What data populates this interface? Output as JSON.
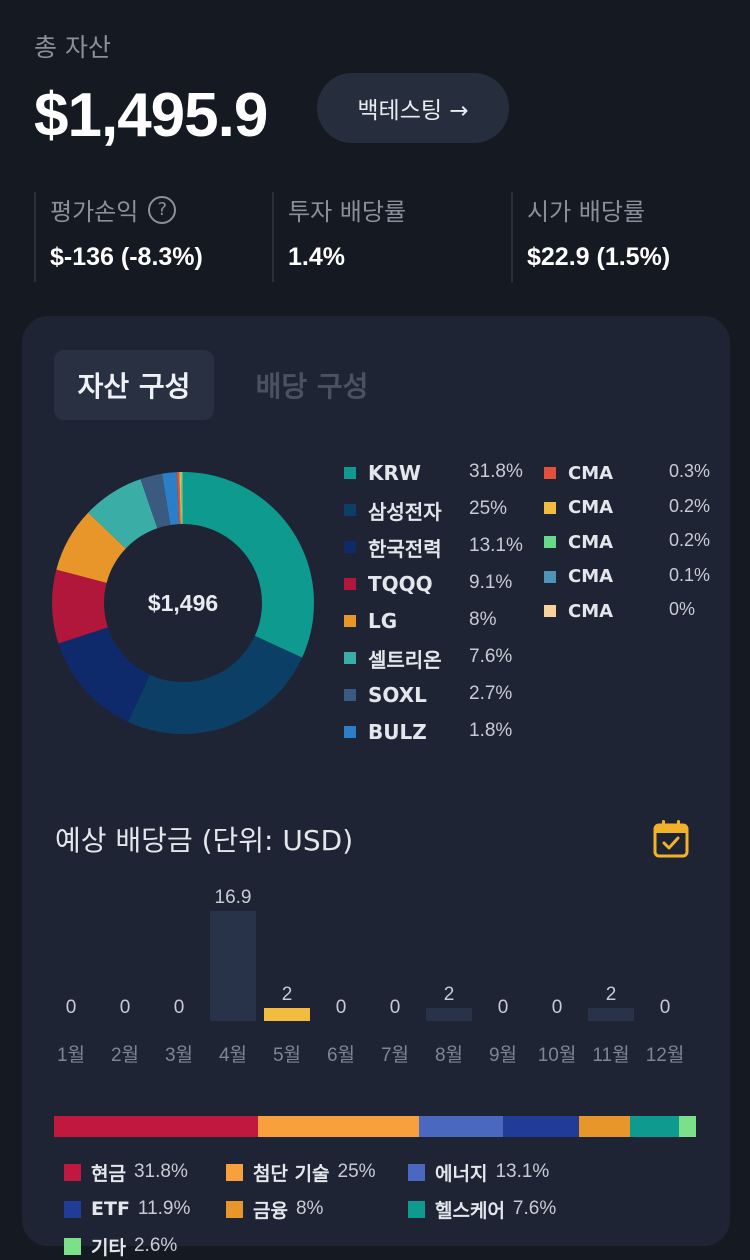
{
  "header": {
    "total_label": "총 자산",
    "total_value": "$1,495.9",
    "backtest_label": "백테스팅 →"
  },
  "stats": [
    {
      "label": "평가손익",
      "value": "$-136 (-8.3%)",
      "help_icon": "question-circle-icon"
    },
    {
      "label": "투자 배당률",
      "value": "1.4%"
    },
    {
      "label": "시가 배당률",
      "value": "$22.9 (1.5%)"
    }
  ],
  "tabs": [
    {
      "label": "자산 구성",
      "active": true
    },
    {
      "label": "배당 구성",
      "active": false
    }
  ],
  "donut": {
    "center_label": "$1,496",
    "segments": [
      {
        "name": "KRW",
        "pct": "31.8%",
        "value": 31.8,
        "color": "#0e9a8e"
      },
      {
        "name": "삼성전자",
        "pct": "25%",
        "value": 25,
        "color": "#0b3f66"
      },
      {
        "name": "한국전력",
        "pct": "13.1%",
        "value": 13.1,
        "color": "#0f2a6a"
      },
      {
        "name": "TQQQ",
        "pct": "9.1%",
        "value": 9.1,
        "color": "#b0173a"
      },
      {
        "name": "LG",
        "pct": "8%",
        "value": 8,
        "color": "#e8962a"
      },
      {
        "name": "셀트리온",
        "pct": "7.6%",
        "value": 7.6,
        "color": "#3aaea6"
      },
      {
        "name": "SOXL",
        "pct": "2.7%",
        "value": 2.7,
        "color": "#3a5a80"
      },
      {
        "name": "BULZ",
        "pct": "1.8%",
        "value": 1.8,
        "color": "#2a7fc8"
      },
      {
        "name": "CMA",
        "pct": "0.3%",
        "value": 0.3,
        "color": "#e0503a"
      },
      {
        "name": "CMA",
        "pct": "0.2%",
        "value": 0.2,
        "color": "#f2bd3e"
      },
      {
        "name": "CMA",
        "pct": "0.2%",
        "value": 0.2,
        "color": "#66d98a"
      },
      {
        "name": "CMA",
        "pct": "0.1%",
        "value": 0.1,
        "color": "#4e93b8"
      },
      {
        "name": "CMA",
        "pct": "0%",
        "value": 0,
        "color": "#f7d29a"
      }
    ]
  },
  "dividend": {
    "title": "예상 배당금 (단위: USD)",
    "calendar_icon": "calendar-check-icon"
  },
  "chart_data": {
    "type": "bar",
    "categories": [
      "1월",
      "2월",
      "3월",
      "4월",
      "5월",
      "6월",
      "7월",
      "8월",
      "9월",
      "10월",
      "11월",
      "12월"
    ],
    "values": [
      0,
      0,
      0,
      16.9,
      2,
      0,
      0,
      2,
      0,
      0,
      2,
      0
    ],
    "value_labels": [
      "0",
      "0",
      "0",
      "16.9",
      "2",
      "0",
      "0",
      "2",
      "0",
      "0",
      "2",
      "0"
    ],
    "highlight_index": 4,
    "bar_color": "#28334a",
    "highlight_color": "#f2bd3e",
    "ylim": [
      0,
      16.9
    ]
  },
  "sectors": [
    {
      "name": "현금",
      "pct": "31.8%",
      "value": 31.8,
      "color": "#c0183f"
    },
    {
      "name": "첨단 기술",
      "pct": "25%",
      "value": 25,
      "color": "#f7a03c"
    },
    {
      "name": "에너지",
      "pct": "13.1%",
      "value": 13.1,
      "color": "#4a68c0"
    },
    {
      "name": "ETF",
      "pct": "11.9%",
      "value": 11.9,
      "color": "#213c98"
    },
    {
      "name": "금융",
      "pct": "8%",
      "value": 8,
      "color": "#e8962a"
    },
    {
      "name": "헬스케어",
      "pct": "7.6%",
      "value": 7.6,
      "color": "#0e9a8e"
    },
    {
      "name": "기타",
      "pct": "2.6%",
      "value": 2.6,
      "color": "#7be08a"
    }
  ]
}
